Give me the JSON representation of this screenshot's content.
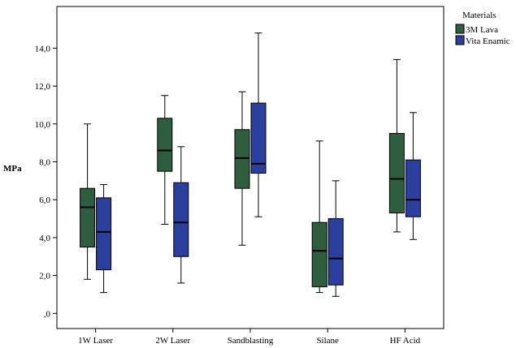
{
  "chart_data": {
    "type": "boxplot",
    "title": "",
    "xlabel": "",
    "ylabel": "MPa",
    "ylim": [
      -0.8,
      16.2
    ],
    "yticks": [
      0,
      2,
      4,
      6,
      8,
      10,
      12,
      14
    ],
    "ytick_labels": [
      ",0",
      "2,0",
      "4,0",
      "6,0",
      "8,0",
      "10,0",
      "12,0",
      "14,0"
    ],
    "grid": false,
    "legend": {
      "title": "Materials",
      "placement": "outside-top-right"
    },
    "categories": [
      "1W Laser",
      "2W Laser",
      "Sandblasting",
      "Silane",
      "HF Acid"
    ],
    "series": [
      {
        "name": "3M Lava",
        "color": "#2e5e3e",
        "boxes": [
          {
            "min": 1.8,
            "q1": 3.5,
            "median": 5.6,
            "q3": 6.6,
            "max": 10.0
          },
          {
            "min": 4.7,
            "q1": 7.5,
            "median": 8.6,
            "q3": 10.3,
            "max": 11.5
          },
          {
            "min": 3.6,
            "q1": 6.6,
            "median": 8.2,
            "q3": 9.7,
            "max": 11.7
          },
          {
            "min": 1.1,
            "q1": 1.4,
            "median": 3.3,
            "q3": 4.8,
            "max": 9.1
          },
          {
            "min": 4.3,
            "q1": 5.3,
            "median": 7.1,
            "q3": 9.5,
            "max": 13.4
          }
        ]
      },
      {
        "name": "Vita Enamic",
        "color": "#2a3f9e",
        "boxes": [
          {
            "min": 1.1,
            "q1": 2.3,
            "median": 4.3,
            "q3": 6.1,
            "max": 6.8
          },
          {
            "min": 1.6,
            "q1": 3.0,
            "median": 4.8,
            "q3": 6.9,
            "max": 8.8
          },
          {
            "min": 5.1,
            "q1": 7.4,
            "median": 7.9,
            "q3": 11.1,
            "max": 14.8
          },
          {
            "min": 0.9,
            "q1": 1.5,
            "median": 2.9,
            "q3": 5.0,
            "max": 7.0
          },
          {
            "min": 3.9,
            "q1": 5.1,
            "median": 6.0,
            "q3": 8.1,
            "max": 10.6
          }
        ]
      }
    ]
  }
}
